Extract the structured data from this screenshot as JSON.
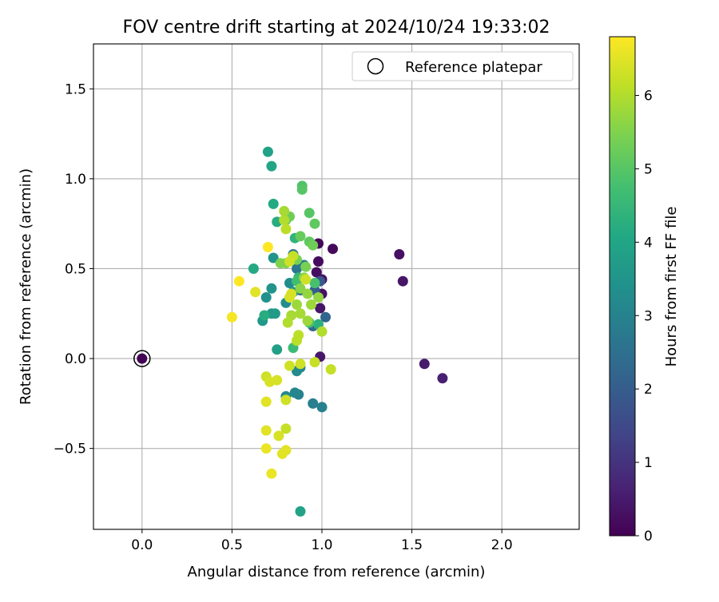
{
  "chart_data": {
    "type": "scatter",
    "title": "FOV centre drift starting at 2024/10/24 19:33:02",
    "xlabel": "Angular distance from reference (arcmin)",
    "ylabel": "Rotation from reference (arcmin)",
    "xlim": [
      -0.27,
      2.43
    ],
    "ylim": [
      -0.95,
      1.75
    ],
    "xticks": [
      0.0,
      0.5,
      1.0,
      1.5,
      2.0
    ],
    "xtick_labels": [
      "0.0",
      "0.5",
      "1.0",
      "1.5",
      "2.0"
    ],
    "yticks": [
      -0.5,
      0.0,
      0.5,
      1.0,
      1.5
    ],
    "ytick_labels": [
      "−0.5",
      "0.0",
      "0.5",
      "1.0",
      "1.5"
    ],
    "grid": true,
    "legend": {
      "position": "top-right",
      "entries": [
        "Reference platepar"
      ]
    },
    "colorbar": {
      "label": "Hours from first FF file",
      "colormap": "viridis",
      "range": [
        0,
        6.8
      ],
      "ticks": [
        0,
        1,
        2,
        3,
        4,
        5,
        6
      ],
      "tick_labels": [
        "0",
        "1",
        "2",
        "3",
        "4",
        "5",
        "6"
      ]
    },
    "reference_point": {
      "x": 0.0,
      "y": 0.0,
      "hours": 0.0
    },
    "points": [
      {
        "x": 0.0,
        "y": 0.0,
        "hours": 0.05
      },
      {
        "x": 0.98,
        "y": 0.64,
        "hours": 0.1
      },
      {
        "x": 1.06,
        "y": 0.61,
        "hours": 0.15
      },
      {
        "x": 0.98,
        "y": 0.54,
        "hours": 0.2
      },
      {
        "x": 0.97,
        "y": 0.48,
        "hours": 0.25
      },
      {
        "x": 1.0,
        "y": 0.44,
        "hours": 0.3
      },
      {
        "x": 1.0,
        "y": 0.36,
        "hours": 0.35
      },
      {
        "x": 0.99,
        "y": 0.28,
        "hours": 0.4
      },
      {
        "x": 0.99,
        "y": 0.01,
        "hours": 0.45
      },
      {
        "x": 1.43,
        "y": 0.58,
        "hours": 0.3
      },
      {
        "x": 1.45,
        "y": 0.43,
        "hours": 0.4
      },
      {
        "x": 1.57,
        "y": -0.03,
        "hours": 0.5
      },
      {
        "x": 1.67,
        "y": -0.11,
        "hours": 0.6
      },
      {
        "x": 0.99,
        "y": 0.43,
        "hours": 1.9
      },
      {
        "x": 0.96,
        "y": 0.38,
        "hours": 2.0
      },
      {
        "x": 1.02,
        "y": 0.23,
        "hours": 2.2
      },
      {
        "x": 0.95,
        "y": 0.18,
        "hours": 2.3
      },
      {
        "x": 0.88,
        "y": 0.38,
        "hours": 2.5
      },
      {
        "x": 0.84,
        "y": 0.58,
        "hours": 2.6
      },
      {
        "x": 0.86,
        "y": 0.5,
        "hours": 2.7
      },
      {
        "x": 0.9,
        "y": 0.52,
        "hours": 2.8
      },
      {
        "x": 0.95,
        "y": -0.25,
        "hours": 2.9
      },
      {
        "x": 1.0,
        "y": -0.27,
        "hours": 2.9
      },
      {
        "x": 0.87,
        "y": -0.2,
        "hours": 3.0
      },
      {
        "x": 0.85,
        "y": -0.19,
        "hours": 3.1
      },
      {
        "x": 0.88,
        "y": -0.05,
        "hours": 3.1
      },
      {
        "x": 0.86,
        "y": -0.07,
        "hours": 3.2
      },
      {
        "x": 0.8,
        "y": -0.21,
        "hours": 3.2
      },
      {
        "x": 0.82,
        "y": 0.42,
        "hours": 3.3
      },
      {
        "x": 0.8,
        "y": 0.31,
        "hours": 3.3
      },
      {
        "x": 0.84,
        "y": 0.37,
        "hours": 3.4
      },
      {
        "x": 0.69,
        "y": 0.34,
        "hours": 3.4
      },
      {
        "x": 0.72,
        "y": 0.39,
        "hours": 3.5
      },
      {
        "x": 0.73,
        "y": 0.56,
        "hours": 3.5
      },
      {
        "x": 0.67,
        "y": 0.21,
        "hours": 3.6
      },
      {
        "x": 0.72,
        "y": 0.25,
        "hours": 3.6
      },
      {
        "x": 0.74,
        "y": 0.25,
        "hours": 3.7
      },
      {
        "x": 0.75,
        "y": 0.05,
        "hours": 3.8
      },
      {
        "x": 0.88,
        "y": -0.85,
        "hours": 3.9
      },
      {
        "x": 0.7,
        "y": 1.15,
        "hours": 3.9
      },
      {
        "x": 0.72,
        "y": 1.07,
        "hours": 4.0
      },
      {
        "x": 0.73,
        "y": 0.86,
        "hours": 4.1
      },
      {
        "x": 0.75,
        "y": 0.76,
        "hours": 4.2
      },
      {
        "x": 0.62,
        "y": 0.5,
        "hours": 4.1
      },
      {
        "x": 0.68,
        "y": 0.24,
        "hours": 4.2
      },
      {
        "x": 0.98,
        "y": 0.19,
        "hours": 4.3
      },
      {
        "x": 0.85,
        "y": 0.67,
        "hours": 4.4
      },
      {
        "x": 0.87,
        "y": 0.45,
        "hours": 4.5
      },
      {
        "x": 0.84,
        "y": 0.06,
        "hours": 4.6
      },
      {
        "x": 0.86,
        "y": 0.43,
        "hours": 4.7
      },
      {
        "x": 0.96,
        "y": 0.42,
        "hours": 4.8
      },
      {
        "x": 0.93,
        "y": 0.2,
        "hours": 4.8
      },
      {
        "x": 0.89,
        "y": 0.96,
        "hours": 4.9
      },
      {
        "x": 0.89,
        "y": 0.94,
        "hours": 5.0
      },
      {
        "x": 0.93,
        "y": 0.81,
        "hours": 5.0
      },
      {
        "x": 0.96,
        "y": 0.75,
        "hours": 5.1
      },
      {
        "x": 0.8,
        "y": 0.77,
        "hours": 5.2
      },
      {
        "x": 0.82,
        "y": 0.79,
        "hours": 5.3
      },
      {
        "x": 0.88,
        "y": 0.68,
        "hours": 5.2
      },
      {
        "x": 0.93,
        "y": 0.65,
        "hours": 5.1
      },
      {
        "x": 0.95,
        "y": 0.63,
        "hours": 5.3
      },
      {
        "x": 0.91,
        "y": 0.51,
        "hours": 5.4
      },
      {
        "x": 0.86,
        "y": 0.55,
        "hours": 5.4
      },
      {
        "x": 0.77,
        "y": 0.53,
        "hours": 5.5
      },
      {
        "x": 0.8,
        "y": 0.53,
        "hours": 5.5
      },
      {
        "x": 0.9,
        "y": 0.45,
        "hours": 5.6
      },
      {
        "x": 0.88,
        "y": 0.39,
        "hours": 5.6
      },
      {
        "x": 0.92,
        "y": 0.36,
        "hours": 5.7
      },
      {
        "x": 0.98,
        "y": 0.34,
        "hours": 5.7
      },
      {
        "x": 0.94,
        "y": 0.3,
        "hours": 5.8
      },
      {
        "x": 0.86,
        "y": 0.3,
        "hours": 5.8
      },
      {
        "x": 0.83,
        "y": 0.24,
        "hours": 5.9
      },
      {
        "x": 0.88,
        "y": 0.25,
        "hours": 5.9
      },
      {
        "x": 0.92,
        "y": 0.21,
        "hours": 5.8
      },
      {
        "x": 0.81,
        "y": 0.2,
        "hours": 6.0
      },
      {
        "x": 1.0,
        "y": 0.15,
        "hours": 6.0
      },
      {
        "x": 0.87,
        "y": 0.13,
        "hours": 6.1
      },
      {
        "x": 0.86,
        "y": 0.1,
        "hours": 6.1
      },
      {
        "x": 0.96,
        "y": -0.02,
        "hours": 6.2
      },
      {
        "x": 1.05,
        "y": -0.06,
        "hours": 6.2
      },
      {
        "x": 0.88,
        "y": -0.03,
        "hours": 6.3
      },
      {
        "x": 0.82,
        "y": -0.04,
        "hours": 6.3
      },
      {
        "x": 0.79,
        "y": 0.77,
        "hours": 6.0
      },
      {
        "x": 0.8,
        "y": 0.72,
        "hours": 6.1
      },
      {
        "x": 0.79,
        "y": 0.82,
        "hours": 5.9
      },
      {
        "x": 0.84,
        "y": 0.57,
        "hours": 6.2
      },
      {
        "x": 0.82,
        "y": 0.54,
        "hours": 6.3
      },
      {
        "x": 0.91,
        "y": 0.44,
        "hours": 6.3
      },
      {
        "x": 0.83,
        "y": 0.36,
        "hours": 6.4
      },
      {
        "x": 0.82,
        "y": 0.34,
        "hours": 6.4
      },
      {
        "x": 0.63,
        "y": 0.37,
        "hours": 6.5
      },
      {
        "x": 0.69,
        "y": -0.1,
        "hours": 6.3
      },
      {
        "x": 0.71,
        "y": -0.13,
        "hours": 6.4
      },
      {
        "x": 0.75,
        "y": -0.12,
        "hours": 6.4
      },
      {
        "x": 0.8,
        "y": -0.23,
        "hours": 6.3
      },
      {
        "x": 0.69,
        "y": -0.24,
        "hours": 6.5
      },
      {
        "x": 0.8,
        "y": -0.39,
        "hours": 6.2
      },
      {
        "x": 0.69,
        "y": -0.4,
        "hours": 6.5
      },
      {
        "x": 0.76,
        "y": -0.43,
        "hours": 6.4
      },
      {
        "x": 0.69,
        "y": -0.5,
        "hours": 6.6
      },
      {
        "x": 0.8,
        "y": -0.51,
        "hours": 6.5
      },
      {
        "x": 0.78,
        "y": -0.53,
        "hours": 6.5
      },
      {
        "x": 0.72,
        "y": -0.64,
        "hours": 6.6
      },
      {
        "x": 0.7,
        "y": 0.62,
        "hours": 6.8
      },
      {
        "x": 0.54,
        "y": 0.43,
        "hours": 6.8
      },
      {
        "x": 0.5,
        "y": 0.23,
        "hours": 6.7
      }
    ]
  }
}
